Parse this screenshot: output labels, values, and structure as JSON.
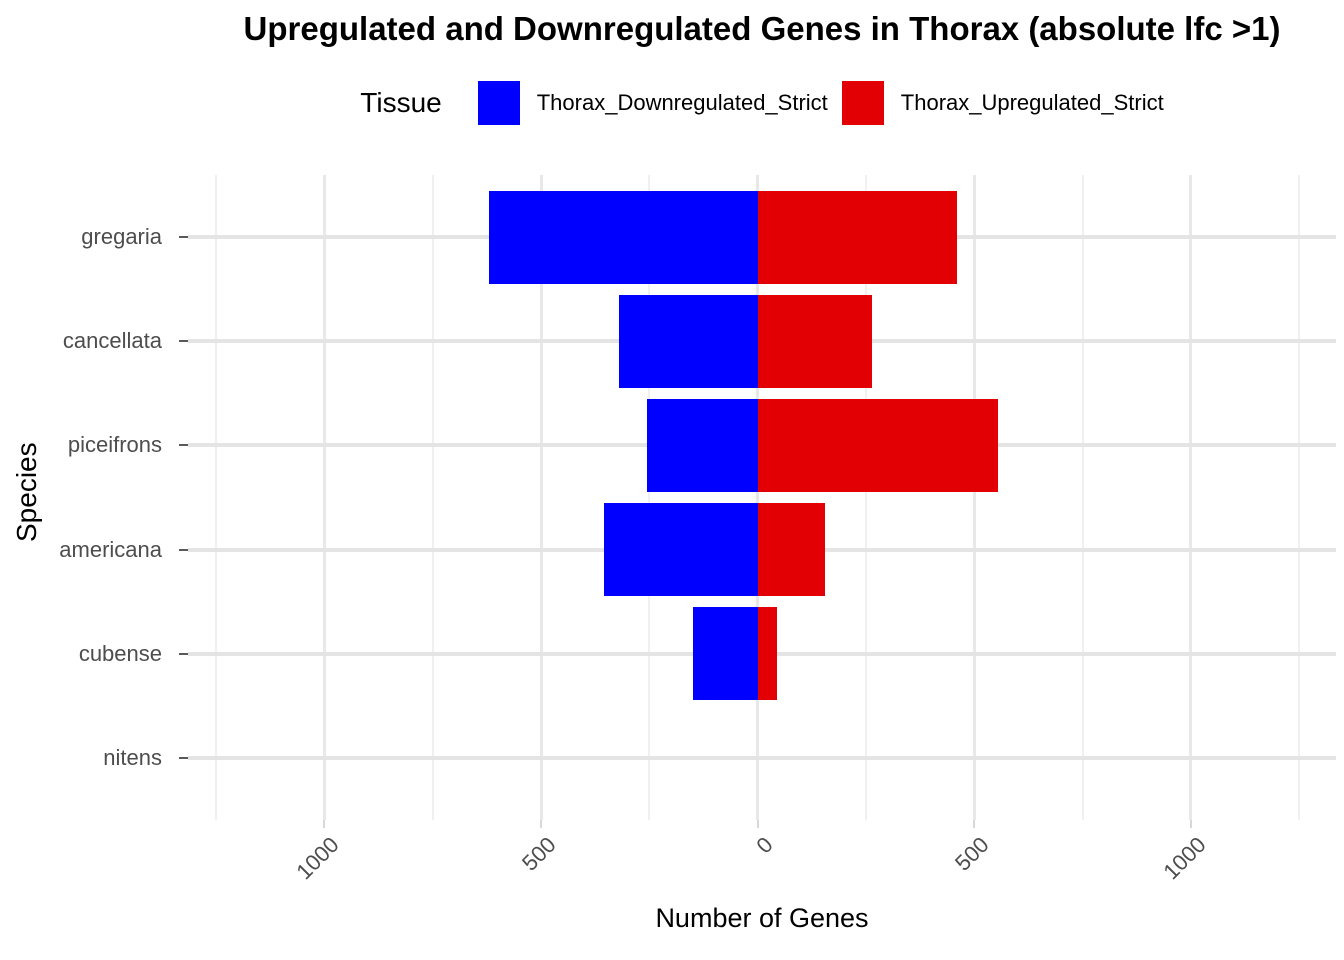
{
  "title": "Upregulated and Downregulated Genes in Thorax (absolute lfc >1)",
  "legend": {
    "title": "Tissue",
    "items": [
      {
        "label": "Thorax_Downregulated_Strict",
        "color": "#0000FF"
      },
      {
        "label": "Thorax_Upregulated_Strict",
        "color": "#E30005"
      }
    ]
  },
  "chart_data": {
    "type": "bar",
    "orientation": "horizontal-diverging",
    "title": "Upregulated and Downregulated Genes in Thorax (absolute lfc >1)",
    "xlabel": "Number of Genes",
    "ylabel": "Species",
    "categories": [
      "gregaria",
      "cancellata",
      "piceifrons",
      "americana",
      "cubense",
      "nitens"
    ],
    "series": [
      {
        "name": "Thorax_Downregulated_Strict",
        "direction": "negative",
        "color": "#0000FF",
        "values": [
          620,
          320,
          255,
          355,
          150,
          0
        ]
      },
      {
        "name": "Thorax_Upregulated_Strict",
        "direction": "positive",
        "color": "#E30005",
        "values": [
          460,
          265,
          555,
          155,
          45,
          0
        ]
      }
    ],
    "x_ticks": [
      -1000,
      -500,
      0,
      500,
      1000
    ],
    "x_tick_labels": [
      "1000",
      "500",
      "0",
      "500",
      "1000"
    ],
    "x_minor_ticks": [
      -1250,
      -750,
      -250,
      250,
      750,
      1250
    ],
    "xlim": [
      -1315,
      1335
    ],
    "band_expansion": 0.6,
    "bar_width_fraction": 0.9,
    "grid": true,
    "legend_position": "top"
  },
  "colors": {
    "downregulated": "#0000FF",
    "upregulated": "#E30005",
    "grid_major": "#e8e8e8",
    "grid_minor": "#f0f0f0",
    "axis_text": "#4d4d4d",
    "background": "#ffffff"
  }
}
